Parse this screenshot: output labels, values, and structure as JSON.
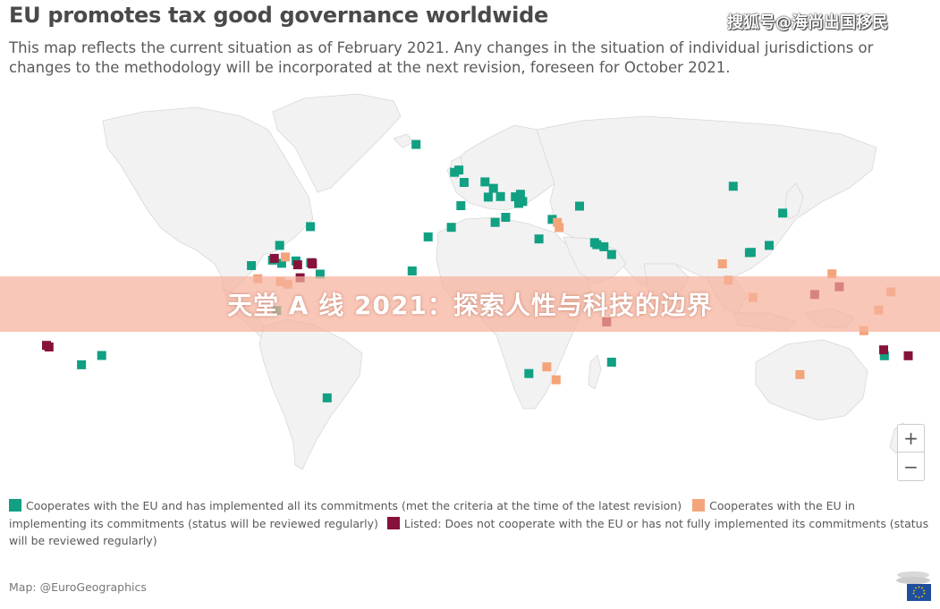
{
  "header": {
    "title": "EU promotes tax good governance worldwide",
    "subtitle": "This map reflects the current situation as of February 2021. Any changes in the situation of individual jurisdictions or changes to the methodology will be incorporated at the next revision, foreseen for October 2021.",
    "watermark": "搜狐号@海尚出国移民"
  },
  "banner": {
    "text": "天堂 A 线 2021：探索人性与科技的边界"
  },
  "zoom": {
    "in_label": "+",
    "out_label": "−"
  },
  "legend": {
    "cooperating": "Cooperates with the EU and has implemented all its commitments (met the criteria at the time of the latest revision)",
    "implementing": "Cooperates with the EU in implementing its commitments (status will be reviewed regularly)",
    "listed": "Listed: Does not cooperate with the EU or has not fully implemented its commitments (status will be reviewed regularly)"
  },
  "credit": "Map: @EuroGeographics",
  "colors": {
    "cooperating": "#11a082",
    "implementing": "#f4a479",
    "listed": "#86113a",
    "land": "#f2f2f2",
    "banner": "#f7b29b"
  },
  "map_markers": {
    "cooperating": [
      {
        "lon": -21.9,
        "lat": 64.1
      },
      {
        "lon": -6.3,
        "lat": 53.3
      },
      {
        "lon": -2.4,
        "lat": 49.4
      },
      {
        "lon": -4.5,
        "lat": 54.2
      },
      {
        "lon": -3.7,
        "lat": 40.4
      },
      {
        "lon": 6.1,
        "lat": 49.6
      },
      {
        "lon": 9.5,
        "lat": 47.1
      },
      {
        "lon": 12.4,
        "lat": 43.9
      },
      {
        "lon": 7.4,
        "lat": 43.7
      },
      {
        "lon": 14.5,
        "lat": 35.9
      },
      {
        "lon": 33.4,
        "lat": 35.1
      },
      {
        "lon": 19.8,
        "lat": 41.3
      },
      {
        "lon": 21.4,
        "lat": 42.0
      },
      {
        "lon": 20.5,
        "lat": 44.8
      },
      {
        "lon": 18.4,
        "lat": 43.8
      },
      {
        "lon": 44.5,
        "lat": 40.2
      },
      {
        "lon": 10.2,
        "lat": 33.9
      },
      {
        "lon": -7.6,
        "lat": 32.0
      },
      {
        "lon": -17.0,
        "lat": 28.3
      },
      {
        "lon": 50.6,
        "lat": 26.1
      },
      {
        "lon": 51.5,
        "lat": 25.3
      },
      {
        "lon": 54.4,
        "lat": 24.5
      },
      {
        "lon": 57.5,
        "lat": 21.5
      },
      {
        "lon": 106.9,
        "lat": 47.9
      },
      {
        "lon": 127.0,
        "lat": 37.5
      },
      {
        "lon": 121.5,
        "lat": 25.0
      },
      {
        "lon": 114.2,
        "lat": 22.3
      },
      {
        "lon": 113.5,
        "lat": 22.2
      },
      {
        "lon": -64.8,
        "lat": 32.3
      },
      {
        "lon": -77.3,
        "lat": 25.0
      },
      {
        "lon": -80.2,
        "lat": 19.3
      },
      {
        "lon": -70.7,
        "lat": 19.0
      },
      {
        "lon": -64.7,
        "lat": 18.3
      },
      {
        "lon": -88.8,
        "lat": 17.2
      },
      {
        "lon": -60.9,
        "lat": 13.9
      },
      {
        "lon": -76.5,
        "lat": 18.1
      },
      {
        "lon": -23.5,
        "lat": 15.1
      },
      {
        "lon": -78.5,
        "lat": -0.2
      },
      {
        "lon": -58.0,
        "lat": -34.0
      },
      {
        "lon": 23.9,
        "lat": -24.6
      },
      {
        "lon": 57.5,
        "lat": -20.2
      },
      {
        "lon": -149.6,
        "lat": -17.6
      },
      {
        "lon": -157.8,
        "lat": -21.2
      },
      {
        "lon": 168.3,
        "lat": -17.7
      },
      {
        "lon": 28.0,
        "lat": 27.5
      }
    ],
    "implementing": [
      {
        "lon": 35.5,
        "lat": 33.9
      },
      {
        "lon": 36.2,
        "lat": 31.9
      },
      {
        "lon": -75.0,
        "lat": 20.5
      },
      {
        "lon": -86.2,
        "lat": 12.1
      },
      {
        "lon": -77.0,
        "lat": 11.0
      },
      {
        "lon": -74.0,
        "lat": 10.0
      },
      {
        "lon": 31.2,
        "lat": -22.0
      },
      {
        "lon": 35.0,
        "lat": -27.0
      },
      {
        "lon": 102.5,
        "lat": 17.9
      },
      {
        "lon": 104.9,
        "lat": 11.5
      },
      {
        "lon": 114.9,
        "lat": 4.9
      },
      {
        "lon": 134.0,
        "lat": -25.0
      },
      {
        "lon": 171.0,
        "lat": 7.0
      },
      {
        "lon": 166.0,
        "lat": 0.0
      },
      {
        "lon": 147.0,
        "lat": 14.0
      },
      {
        "lon": 160.0,
        "lat": -8.0
      }
    ],
    "listed": [
      {
        "lon": -70.0,
        "lat": 17.5
      },
      {
        "lon": -79.5,
        "lat": 20.0
      },
      {
        "lon": -69.0,
        "lat": 12.5
      },
      {
        "lon": 55.5,
        "lat": -4.6
      },
      {
        "lon": -172.0,
        "lat": -13.7
      },
      {
        "lon": -171.0,
        "lat": -14.3
      },
      {
        "lon": 168.0,
        "lat": -15.4
      },
      {
        "lon": 178.0,
        "lat": -17.7
      },
      {
        "lon": 150.0,
        "lat": 9.0
      },
      {
        "lon": 140.0,
        "lat": 6.0
      },
      {
        "lon": -64.0,
        "lat": 17.8
      },
      {
        "lon": -64.2,
        "lat": 18.3
      }
    ]
  }
}
